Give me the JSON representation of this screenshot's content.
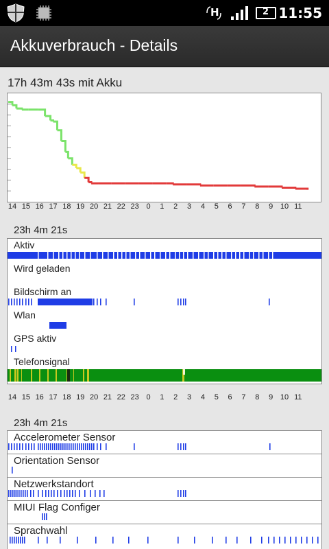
{
  "status_bar": {
    "time": "11:55",
    "network_type": "H",
    "sim_number": "2",
    "icons": [
      "shield-icon",
      "chip-icon",
      "hspa-icon",
      "signal-icon",
      "battery-icon"
    ]
  },
  "header": {
    "title": "Akkuverbrauch - Details"
  },
  "summary": {
    "on_battery_text": "17h 43m 43s mit Akku"
  },
  "hour_ticks": [
    "14",
    "15",
    "16",
    "17",
    "18",
    "19",
    "20",
    "21",
    "22",
    "23",
    "0",
    "1",
    "2",
    "3",
    "4",
    "5",
    "6",
    "7",
    "8",
    "9",
    "10",
    "11"
  ],
  "battery_chart_data": {
    "type": "line",
    "x_unit": "hour of day",
    "level_colors": {
      "high": "#7be36a",
      "medium": "#e8e84a",
      "low": "#e23a3a"
    },
    "points": [
      [
        13.9,
        92
      ],
      [
        14.2,
        89
      ],
      [
        14.5,
        86
      ],
      [
        14.9,
        85
      ],
      [
        15.4,
        85
      ],
      [
        16.1,
        85
      ],
      [
        16.6,
        79
      ],
      [
        17.0,
        75
      ],
      [
        17.2,
        74
      ],
      [
        17.5,
        66
      ],
      [
        17.8,
        56
      ],
      [
        18.1,
        46
      ],
      [
        18.3,
        40
      ],
      [
        18.6,
        34
      ],
      [
        18.9,
        31
      ],
      [
        19.2,
        27
      ],
      [
        19.5,
        22
      ],
      [
        19.8,
        18
      ],
      [
        20.0,
        17
      ],
      [
        20.5,
        17
      ],
      [
        21.5,
        17
      ],
      [
        22.5,
        17
      ],
      [
        23.5,
        17
      ],
      [
        0.5,
        17
      ],
      [
        1.5,
        17
      ],
      [
        2.0,
        16
      ],
      [
        3.0,
        16
      ],
      [
        4.0,
        15
      ],
      [
        5.0,
        15
      ],
      [
        6.0,
        15
      ],
      [
        7.0,
        15
      ],
      [
        8.0,
        14
      ],
      [
        9.0,
        14
      ],
      [
        10.0,
        13
      ],
      [
        11.0,
        12
      ],
      [
        11.9,
        11
      ]
    ]
  },
  "usage": {
    "duration_text": "23h 4m 21s",
    "tracks": [
      {
        "label": "Aktiv",
        "kind": "fill",
        "color": "#1f3de6"
      },
      {
        "label": "Wird geladen",
        "kind": "empty"
      },
      {
        "label": "Bildschirm an",
        "kind": "ticks",
        "color": "#1f3de6"
      },
      {
        "label": "Wlan",
        "kind": "block",
        "color": "#1f3de6"
      },
      {
        "label": "GPS aktiv",
        "kind": "ticks",
        "color": "#1f3de6"
      },
      {
        "label": "Telefonsignal",
        "kind": "signal",
        "color": "#0a8f10"
      }
    ]
  },
  "sensors": {
    "duration_text": "23h 4m 21s",
    "rows": [
      {
        "label": "Accelerometer Sensor"
      },
      {
        "label": "Orientation Sensor"
      },
      {
        "label": "Netzwerkstandort"
      },
      {
        "label": "MIUI Flag Configer"
      },
      {
        "label": "Sprachwahl"
      }
    ]
  }
}
